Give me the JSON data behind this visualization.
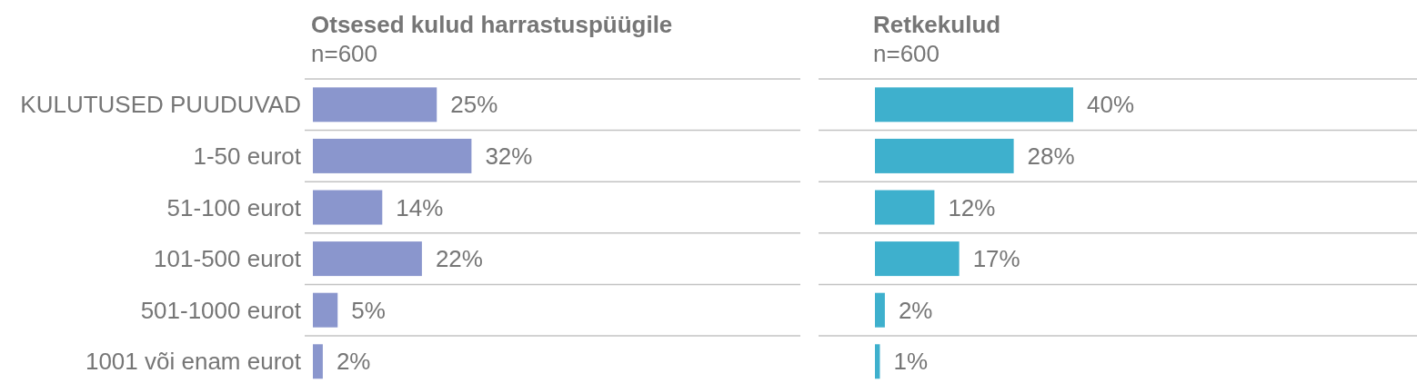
{
  "chart_data": [
    {
      "type": "bar",
      "orientation": "horizontal",
      "title": "Otsesed kulud harrastuspüügile",
      "subtitle": "n=600",
      "categories": [
        "KULUTUSED PUUDUVAD",
        "1-50 eurot",
        "51-100 eurot",
        "101-500 eurot",
        "501-1000 eurot",
        "1001 või enam eurot"
      ],
      "values": [
        25,
        32,
        14,
        22,
        5,
        2
      ],
      "value_labels": [
        "25%",
        "32%",
        "14%",
        "22%",
        "5%",
        "2%"
      ],
      "color": "#8a96cd",
      "grid": "y",
      "tick_labels": "y"
    },
    {
      "type": "bar",
      "orientation": "horizontal",
      "title": "Retkekulud",
      "subtitle": "n=600",
      "categories": [
        null,
        null,
        null,
        null,
        null,
        null
      ],
      "values": [
        40,
        28,
        12,
        17,
        2,
        1
      ],
      "value_labels": [
        "40%",
        "28%",
        "12%",
        "17%",
        "2%",
        "1%"
      ],
      "color": "#3eb0cd",
      "grid": "y",
      "tick_labels": false
    }
  ]
}
